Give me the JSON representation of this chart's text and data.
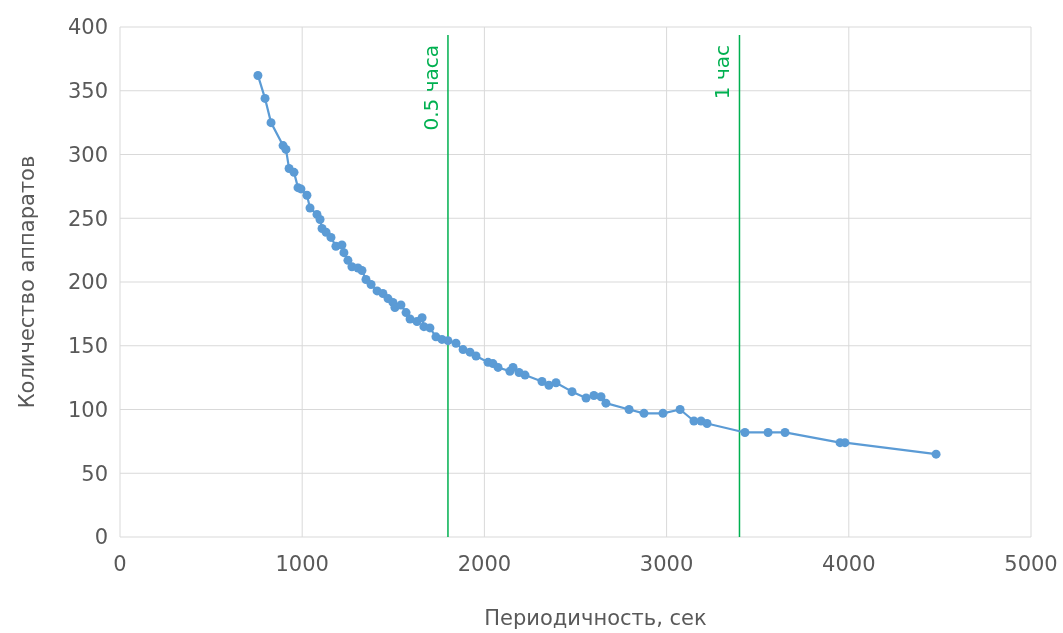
{
  "chart_data": {
    "type": "line",
    "xlabel": "Периодичность, сек",
    "ylabel": "Количество аппаратов",
    "xlim": [
      0,
      5000
    ],
    "xticks": [
      0,
      1000,
      2000,
      3000,
      4000,
      5000
    ],
    "ylim": [
      0,
      400
    ],
    "yticks": [
      0,
      50,
      100,
      150,
      200,
      250,
      300,
      350,
      400
    ],
    "grid": true,
    "marker": "circle",
    "line_style": "solid",
    "series": [
      {
        "color": "#5b9bd5",
        "x": [
          757,
          796,
          829,
          895,
          911,
          928,
          955,
          977,
          993,
          1026,
          1043,
          1081,
          1098,
          1109,
          1131,
          1158,
          1185,
          1218,
          1229,
          1251,
          1273,
          1306,
          1328,
          1350,
          1378,
          1411,
          1443,
          1471,
          1498,
          1509,
          1542,
          1570,
          1592,
          1630,
          1658,
          1668,
          1701,
          1734,
          1767,
          1800,
          1844,
          1883,
          1921,
          1954,
          2020,
          2047,
          2075,
          2140,
          2157,
          2190,
          2223,
          2316,
          2354,
          2393,
          2481,
          2558,
          2601,
          2640,
          2667,
          2794,
          2876,
          2980,
          3074,
          3150,
          3189,
          3222,
          3430,
          3557,
          3650,
          3952,
          3979,
          4479
        ],
        "values": [
          362,
          344,
          325,
          307,
          304,
          289,
          286,
          274,
          273,
          268,
          258,
          253,
          249,
          242,
          239,
          235,
          228,
          229,
          223,
          217,
          212,
          211,
          209,
          202,
          198,
          193,
          191,
          187,
          184,
          180,
          182,
          176,
          171,
          169,
          172,
          165,
          164,
          157,
          155,
          154,
          152,
          147,
          145,
          142,
          137,
          136,
          133,
          130,
          133,
          129,
          127,
          122,
          119,
          121,
          114,
          109,
          111,
          110,
          105,
          100,
          97,
          97,
          100,
          91,
          91,
          89,
          82,
          82,
          82,
          74,
          74,
          65
        ]
      }
    ],
    "ref_lines": [
      {
        "axis": "x",
        "value": 1800,
        "label": "0.5 часа",
        "color": "#00b050"
      },
      {
        "axis": "x",
        "value": 3400,
        "label": "1 час",
        "color": "#00b050"
      }
    ]
  }
}
